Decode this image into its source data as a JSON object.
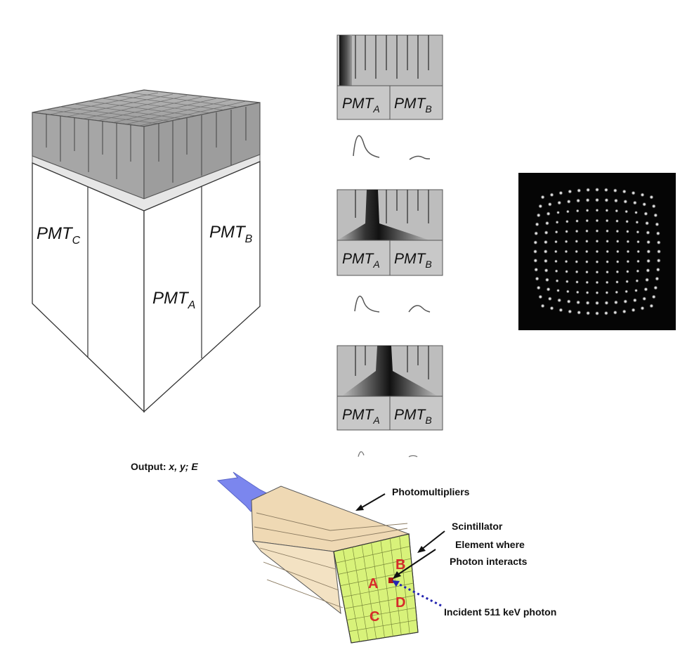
{
  "block_labels": {
    "pmt_c": {
      "base": "PMT",
      "sub": "C"
    },
    "pmt_a": {
      "base": "PMT",
      "sub": "A"
    },
    "pmt_b": {
      "base": "PMT",
      "sub": "B"
    }
  },
  "panels": [
    {
      "left": {
        "base": "PMT",
        "sub": "A"
      },
      "right": {
        "base": "PMT",
        "sub": "B"
      }
    },
    {
      "left": {
        "base": "PMT",
        "sub": "A"
      },
      "right": {
        "base": "PMT",
        "sub": "B"
      }
    },
    {
      "left": {
        "base": "PMT",
        "sub": "A"
      },
      "right": {
        "base": "PMT",
        "sub": "B"
      }
    }
  ],
  "detector": {
    "output_prefix": "Output: ",
    "output_vars": "x, y; E",
    "photomultipliers": "Photomultipliers",
    "scintillator": "Scintillator",
    "element_line1": "Element where",
    "element_line2": "Photon interacts",
    "incident": "Incident 511 keV photon",
    "quadrants": {
      "a": "A",
      "b": "B",
      "c": "C",
      "d": "D"
    }
  },
  "colors": {
    "arrow_blue": "#7b86ee",
    "pmt_beige": "#efd9b4",
    "scintillator_green": "#d8f27a",
    "quadrant_red": "#d62a2a",
    "photon_dot_blue": "#2424b0",
    "crystal_grey": "#a8a8a8"
  }
}
